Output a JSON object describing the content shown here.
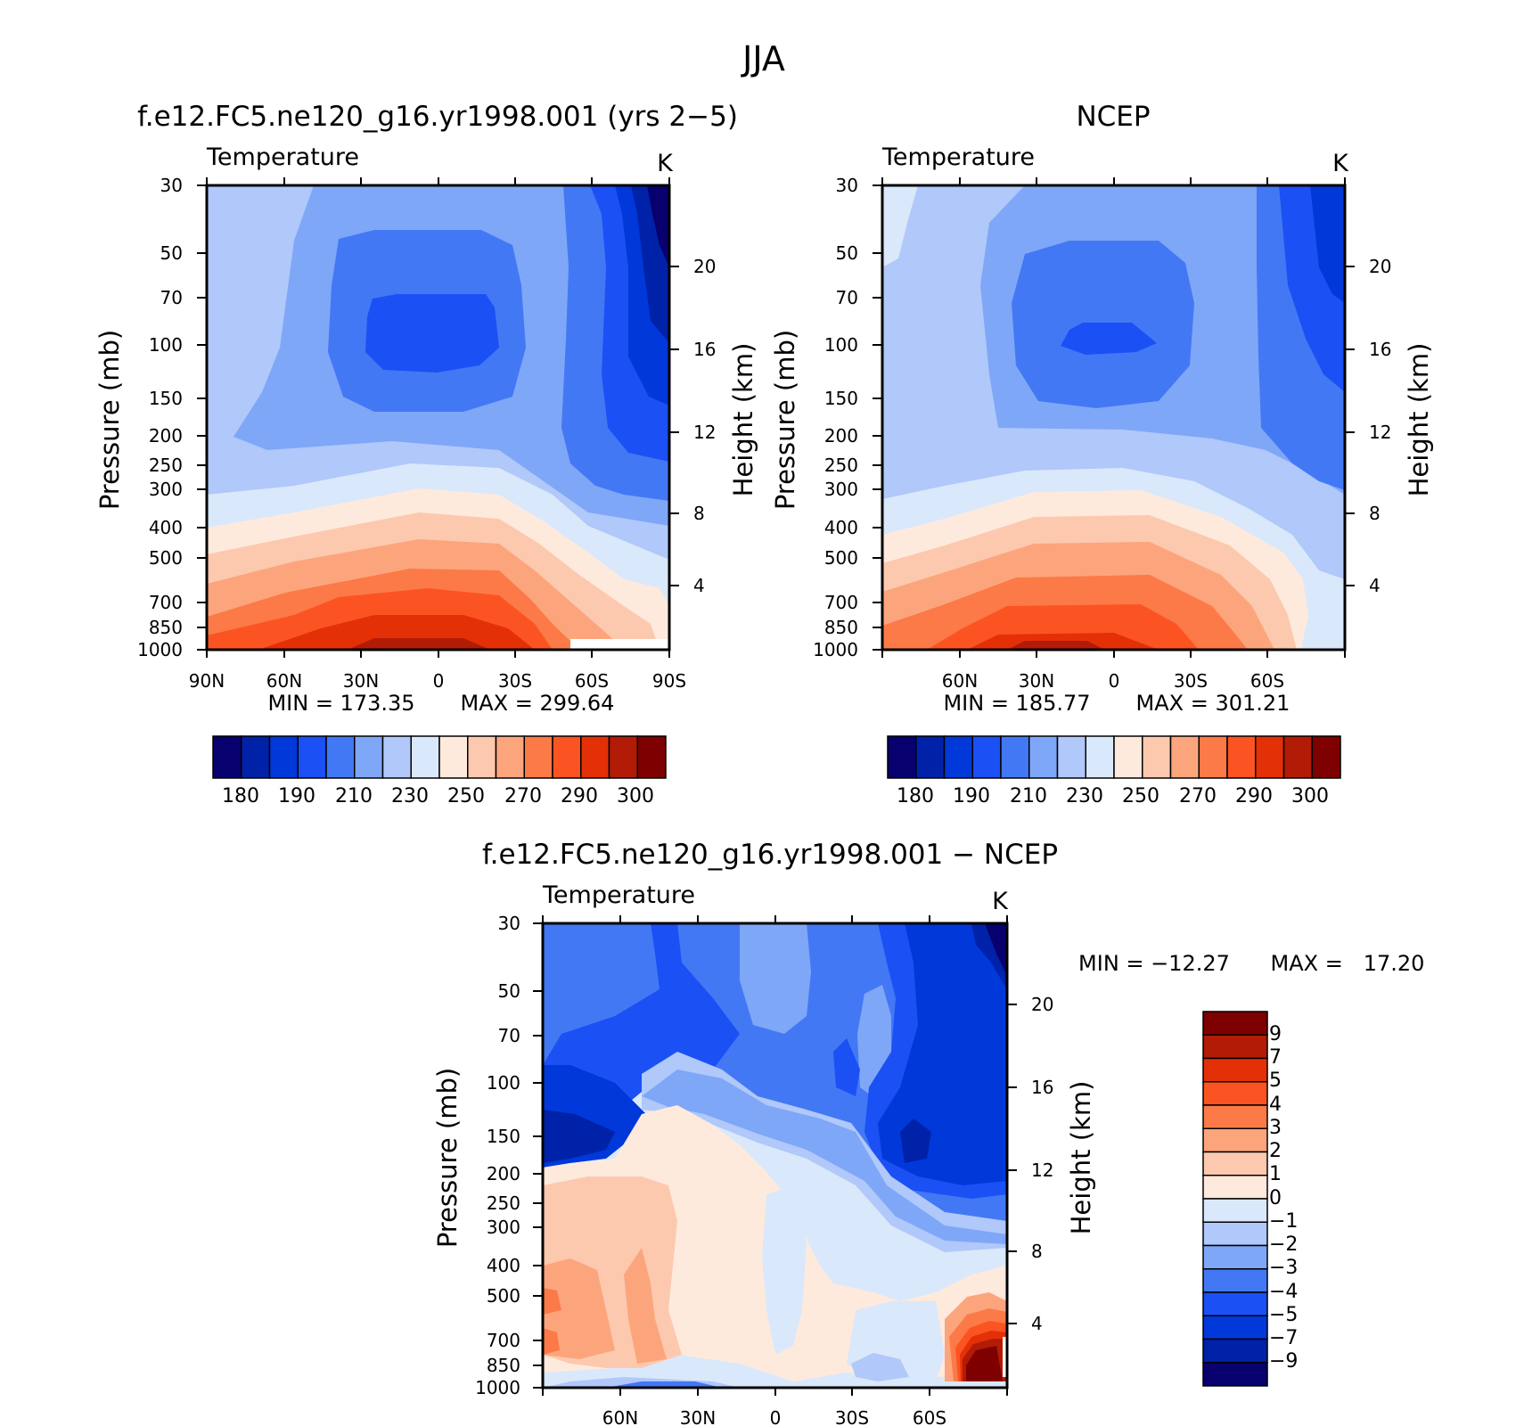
{
  "figure": {
    "title": "JJA"
  },
  "colors": {
    "abs_palette": [
      "#08006e",
      "#0022a8",
      "#0038da",
      "#1b50f5",
      "#4378f5",
      "#7fa7f7",
      "#b0c8fa",
      "#dae8fb",
      "#feeadc",
      "#fcc9ae",
      "#fca57d",
      "#fb7a47",
      "#fb5422",
      "#e43007",
      "#b21b05",
      "#7e0000"
    ],
    "diff_palette": [
      "#08006e",
      "#0022a8",
      "#0038da",
      "#1b50f5",
      "#4378f5",
      "#7fa7f7",
      "#b0c8fa",
      "#dae8fb",
      "#feeadc",
      "#fcc9ae",
      "#fca57d",
      "#fb7a47",
      "#fb5422",
      "#e43007",
      "#b21b05",
      "#7e0000"
    ]
  },
  "chart_data": [
    {
      "type": "heatmap",
      "title": "f.e12.FC5.ne120_g16.yr1998.001 (yrs 2−5)",
      "subtitle": "Temperature",
      "units": "K",
      "ylabel": "Pressure (mb)",
      "ylabel_right": "Height (km)",
      "x_ticks": [
        "90N",
        "60N",
        "30N",
        "0",
        "30S",
        "60S",
        "90S"
      ],
      "y_ticks": [
        "30",
        "50",
        "70",
        "100",
        "150",
        "200",
        "250",
        "300",
        "400",
        "500",
        "700",
        "850",
        "1000"
      ],
      "y2_ticks": [
        "20",
        "16",
        "12",
        "8",
        "4"
      ],
      "xlim": [
        90,
        -90
      ],
      "ylim": [
        1000,
        30
      ],
      "y_scale": "log",
      "min_label": "MIN = 173.35",
      "max_label": "MAX = 299.64",
      "min": 173.35,
      "max": 299.64,
      "colorbar": {
        "orientation": "horizontal",
        "labels": [
          "180",
          "190",
          "210",
          "230",
          "250",
          "270",
          "290",
          "300"
        ]
      }
    },
    {
      "type": "heatmap",
      "title": "NCEP",
      "subtitle": "Temperature",
      "units": "K",
      "ylabel": "Pressure (mb)",
      "ylabel_right": "Height (km)",
      "x_ticks": [
        "60N",
        "30N",
        "0",
        "30S",
        "60S"
      ],
      "y_ticks": [
        "30",
        "50",
        "70",
        "100",
        "150",
        "200",
        "250",
        "300",
        "400",
        "500",
        "700",
        "850",
        "1000"
      ],
      "y2_ticks": [
        "20",
        "16",
        "12",
        "8",
        "4"
      ],
      "xlim": [
        90,
        -90
      ],
      "ylim": [
        1000,
        30
      ],
      "y_scale": "log",
      "min_label": "MIN = 185.77",
      "max_label": "MAX = 301.21",
      "min": 185.77,
      "max": 301.21,
      "colorbar": {
        "orientation": "horizontal",
        "labels": [
          "180",
          "190",
          "210",
          "230",
          "250",
          "270",
          "290",
          "300"
        ]
      }
    },
    {
      "type": "heatmap",
      "title": "f.e12.FC5.ne120_g16.yr1998.001 − NCEP",
      "subtitle": "Temperature",
      "units": "K",
      "ylabel": "Pressure (mb)",
      "ylabel_right": "Height (km)",
      "x_ticks": [
        "60N",
        "30N",
        "0",
        "30S",
        "60S"
      ],
      "y_ticks": [
        "30",
        "50",
        "70",
        "100",
        "150",
        "200",
        "250",
        "300",
        "400",
        "500",
        "700",
        "850",
        "1000"
      ],
      "y2_ticks": [
        "20",
        "16",
        "12",
        "8",
        "4"
      ],
      "xlim": [
        90,
        -90
      ],
      "ylim": [
        1000,
        30
      ],
      "y_scale": "log",
      "min_label": "MIN = −12.27",
      "max_label": "MAX =   17.20",
      "min": -12.27,
      "max": 17.2,
      "colorbar": {
        "orientation": "vertical",
        "labels": [
          "9",
          "7",
          "5",
          "4",
          "3",
          "2",
          "1",
          "0",
          "−1",
          "−2",
          "−3",
          "−4",
          "−5",
          "−7",
          "−9"
        ]
      }
    }
  ]
}
